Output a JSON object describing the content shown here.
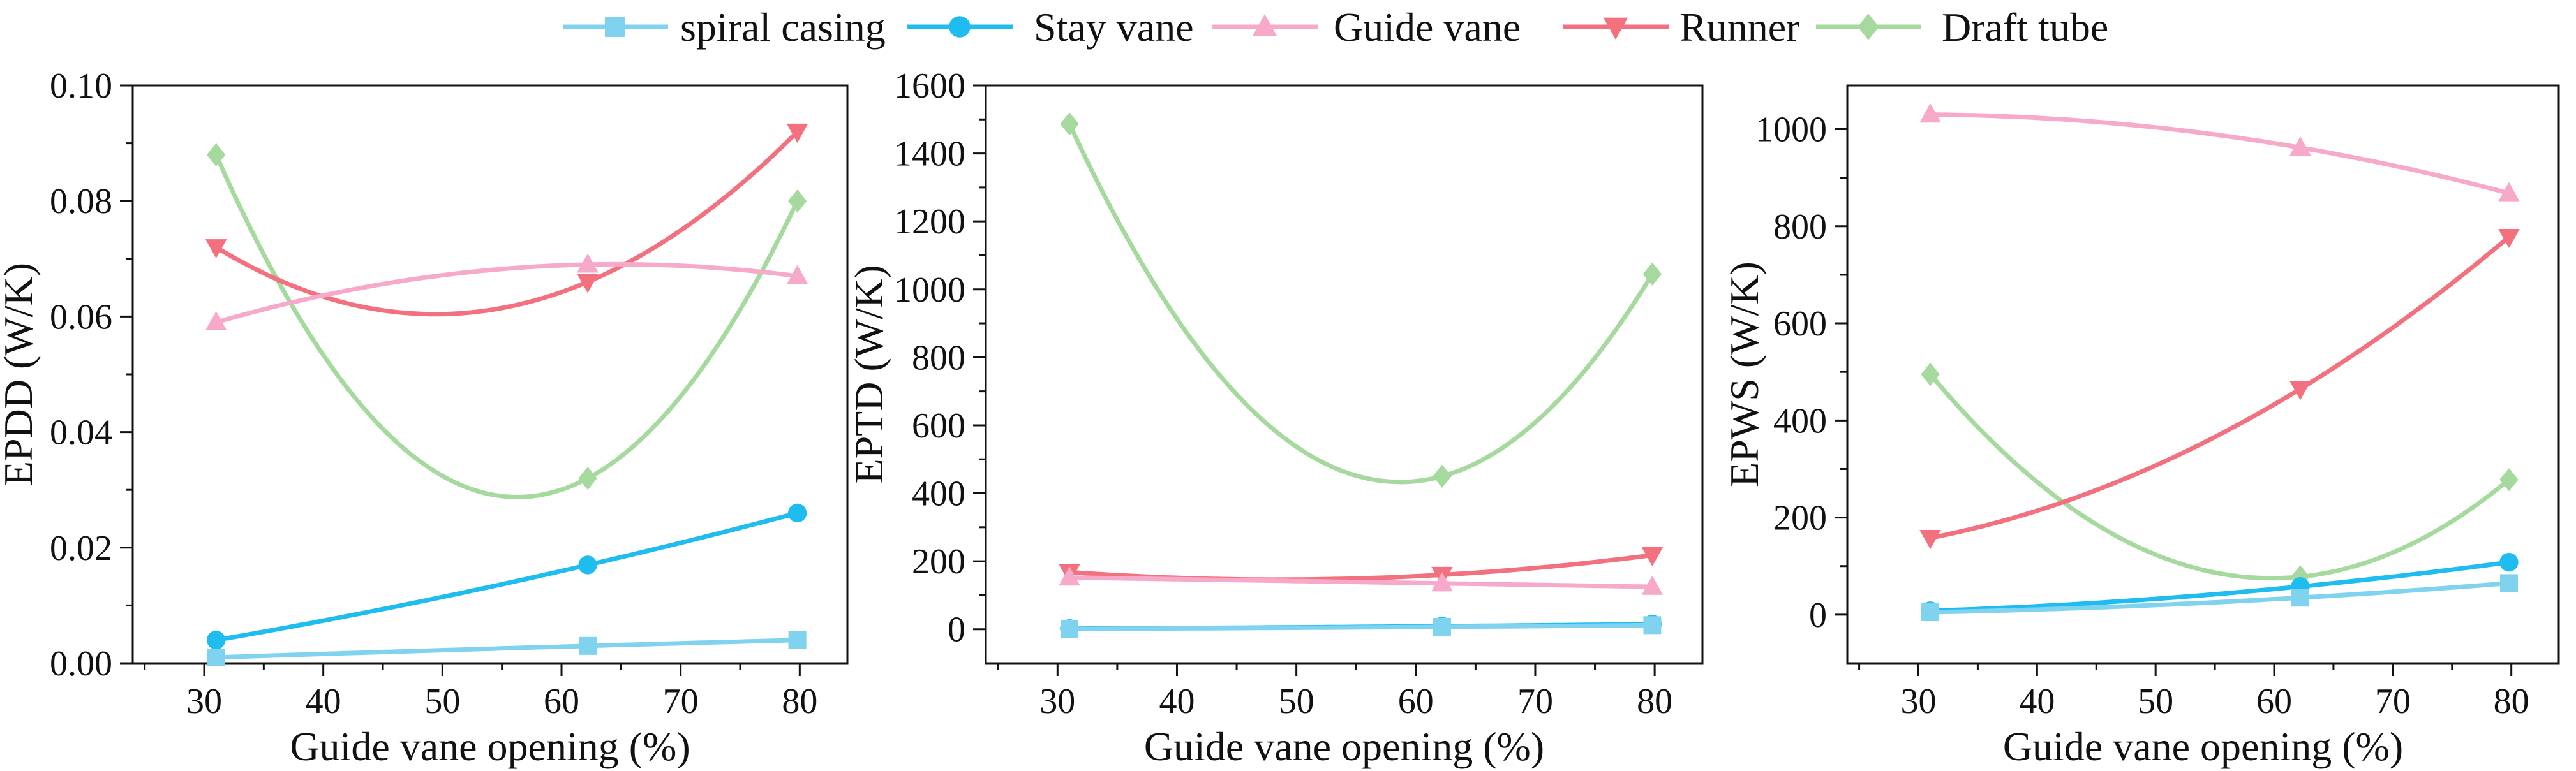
{
  "legend": {
    "placement": "top-center",
    "entries": [
      {
        "name": "spiral casing",
        "color": "#7fd3ef",
        "marker": "square"
      },
      {
        "name": "Stay vane",
        "color": "#1ebcef",
        "marker": "circle"
      },
      {
        "name": "Guide vane",
        "color": "#f7a9c9",
        "marker": "triangle-up"
      },
      {
        "name": "Runner",
        "color": "#f3717e",
        "marker": "triangle-down"
      },
      {
        "name": "Draft tube",
        "color": "#a6d99e",
        "marker": "diamond"
      }
    ]
  },
  "chart_data": [
    {
      "type": "line",
      "title": "",
      "xlabel": "Guide vane opening (%)",
      "ylabel": "EPDD (W/K)",
      "xlim": [
        24,
        84
      ],
      "ylim": [
        0,
        0.1
      ],
      "xticks": [
        30,
        40,
        50,
        60,
        70,
        80
      ],
      "yticks": [
        0,
        0.02,
        0.04,
        0.06,
        0.08,
        0.1
      ],
      "ytick_labels": [
        "0.00",
        "0.02",
        "0.04",
        "0.06",
        "0.08",
        "0.10"
      ],
      "x": [
        31,
        62.2,
        79.8
      ],
      "series": [
        {
          "name": "spiral casing",
          "values": [
            0.001,
            0.003,
            0.004
          ]
        },
        {
          "name": "Stay vane",
          "values": [
            0.004,
            0.017,
            0.026
          ]
        },
        {
          "name": "Guide vane",
          "values": [
            0.059,
            0.069,
            0.067
          ]
        },
        {
          "name": "Runner",
          "values": [
            0.072,
            0.066,
            0.092
          ]
        },
        {
          "name": "Draft tube",
          "values": [
            0.088,
            0.032,
            0.08
          ]
        }
      ]
    },
    {
      "type": "line",
      "title": "",
      "xlabel": "Guide vane opening (%)",
      "ylabel": "EPTD (W/K)",
      "xlim": [
        24,
        84
      ],
      "ylim": [
        -100,
        1600
      ],
      "xticks": [
        30,
        40,
        50,
        60,
        70,
        80
      ],
      "yticks": [
        0,
        200,
        400,
        600,
        800,
        1000,
        1200,
        1400,
        1600
      ],
      "ytick_labels": [
        "0",
        "200",
        "400",
        "600",
        "800",
        "1000",
        "1200",
        "1400",
        "1600"
      ],
      "x": [
        31,
        62.2,
        79.8
      ],
      "series": [
        {
          "name": "spiral casing",
          "values": [
            1,
            7,
            12
          ]
        },
        {
          "name": "Stay vane",
          "values": [
            2,
            9,
            15
          ]
        },
        {
          "name": "Guide vane",
          "values": [
            152,
            135,
            125
          ]
        },
        {
          "name": "Runner",
          "values": [
            168,
            160,
            218
          ]
        },
        {
          "name": "Draft tube",
          "values": [
            1487,
            450,
            1045
          ]
        }
      ]
    },
    {
      "type": "line",
      "title": "",
      "xlabel": "Guide vane opening (%)",
      "ylabel": "EPWS (W/K)",
      "xlim": [
        24,
        84
      ],
      "ylim": [
        -100,
        1090
      ],
      "xticks": [
        30,
        40,
        50,
        60,
        70,
        80
      ],
      "yticks": [
        0,
        200,
        400,
        600,
        800,
        1000
      ],
      "ytick_labels": [
        "0",
        "200",
        "400",
        "600",
        "800",
        "1000"
      ],
      "x": [
        31,
        62.2,
        79.8
      ],
      "series": [
        {
          "name": "spiral casing",
          "values": [
            5,
            35,
            65
          ]
        },
        {
          "name": "Stay vane",
          "values": [
            8,
            58,
            108
          ]
        },
        {
          "name": "Guide vane",
          "values": [
            1030,
            962,
            868
          ]
        },
        {
          "name": "Runner",
          "values": [
            158,
            465,
            778
          ]
        },
        {
          "name": "Draft tube",
          "values": [
            495,
            78,
            278
          ]
        }
      ]
    }
  ]
}
